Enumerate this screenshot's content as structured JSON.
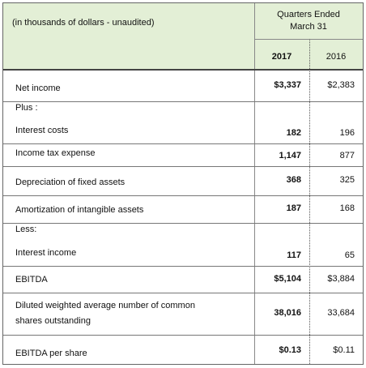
{
  "header": {
    "caption": "(in thousands of dollars - unaudited)",
    "period": [
      "Quarters Ended",
      "March 31"
    ],
    "years": [
      "2017",
      "2016"
    ]
  },
  "rows": [
    {
      "label": "Net income",
      "values": [
        "$3,337",
        "$2,383"
      ]
    },
    {
      "label": "Plus :"
    },
    {
      "label": "Interest costs",
      "values": [
        "182",
        "196"
      ]
    },
    {
      "label": "Income tax expense",
      "values": [
        "1,147",
        "877"
      ]
    },
    {
      "label": "Depreciation of fixed assets",
      "values": [
        "368",
        "325"
      ]
    },
    {
      "label": "Amortization of intangible assets",
      "values": [
        "187",
        "168"
      ]
    },
    {
      "label": "Less:"
    },
    {
      "label": "Interest income",
      "values": [
        "117",
        "65"
      ]
    },
    {
      "label": "EBITDA",
      "values": [
        "$5,104",
        "$3,884"
      ]
    },
    {
      "label": [
        "Diluted weighted average number of common",
        "shares outstanding"
      ],
      "values": [
        "38,016",
        "33,684"
      ]
    },
    {
      "label": "EBITDA per share",
      "values": [
        "$0.13",
        "$0.11"
      ]
    }
  ]
}
